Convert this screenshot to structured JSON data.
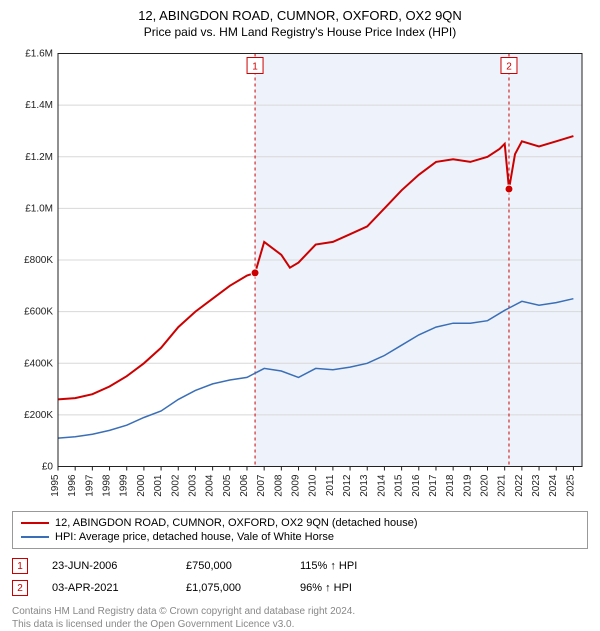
{
  "title": "12, ABINGDON ROAD, CUMNOR, OXFORD, OX2 9QN",
  "subtitle": "Price paid vs. HM Land Registry's House Price Index (HPI)",
  "chart": {
    "type": "line",
    "background_color": "#ffffff",
    "shade_color": "#eef3fb",
    "grid_color": "#d8d8d8",
    "axis_color": "#222222",
    "font_family": "Arial",
    "label_fontsize": 10,
    "xlim": [
      1995,
      2025.5
    ],
    "ylim": [
      0,
      1600000
    ],
    "ytick_step": 200000,
    "y_ticks": [
      "£0",
      "£200K",
      "£400K",
      "£600K",
      "£800K",
      "£1.0M",
      "£1.2M",
      "£1.4M",
      "£1.6M"
    ],
    "x_ticks": [
      1995,
      1996,
      1997,
      1998,
      1999,
      2000,
      2001,
      2002,
      2003,
      2004,
      2005,
      2006,
      2007,
      2008,
      2009,
      2010,
      2011,
      2012,
      2013,
      2014,
      2015,
      2016,
      2017,
      2018,
      2019,
      2020,
      2021,
      2022,
      2023,
      2024,
      2025
    ],
    "shade_from_year": 2006.47,
    "series": [
      {
        "name": "property",
        "color": "#cc0000",
        "line_width": 2,
        "points": [
          [
            1995,
            260000
          ],
          [
            1996,
            265000
          ],
          [
            1997,
            280000
          ],
          [
            1998,
            310000
          ],
          [
            1999,
            350000
          ],
          [
            2000,
            400000
          ],
          [
            2001,
            460000
          ],
          [
            2002,
            540000
          ],
          [
            2003,
            600000
          ],
          [
            2004,
            650000
          ],
          [
            2005,
            700000
          ],
          [
            2006,
            740000
          ],
          [
            2006.47,
            750000
          ],
          [
            2007,
            870000
          ],
          [
            2008,
            820000
          ],
          [
            2008.5,
            770000
          ],
          [
            2009,
            790000
          ],
          [
            2010,
            860000
          ],
          [
            2011,
            870000
          ],
          [
            2012,
            900000
          ],
          [
            2013,
            930000
          ],
          [
            2014,
            1000000
          ],
          [
            2015,
            1070000
          ],
          [
            2016,
            1130000
          ],
          [
            2017,
            1180000
          ],
          [
            2018,
            1190000
          ],
          [
            2019,
            1180000
          ],
          [
            2020,
            1200000
          ],
          [
            2020.7,
            1230000
          ],
          [
            2021,
            1250000
          ],
          [
            2021.25,
            1075000
          ],
          [
            2021.6,
            1210000
          ],
          [
            2022,
            1260000
          ],
          [
            2023,
            1240000
          ],
          [
            2024,
            1260000
          ],
          [
            2025,
            1280000
          ]
        ]
      },
      {
        "name": "hpi",
        "color": "#3a6fb7",
        "line_width": 1.5,
        "points": [
          [
            1995,
            110000
          ],
          [
            1996,
            115000
          ],
          [
            1997,
            125000
          ],
          [
            1998,
            140000
          ],
          [
            1999,
            160000
          ],
          [
            2000,
            190000
          ],
          [
            2001,
            215000
          ],
          [
            2002,
            260000
          ],
          [
            2003,
            295000
          ],
          [
            2004,
            320000
          ],
          [
            2005,
            335000
          ],
          [
            2006,
            345000
          ],
          [
            2007,
            380000
          ],
          [
            2008,
            370000
          ],
          [
            2009,
            345000
          ],
          [
            2010,
            380000
          ],
          [
            2011,
            375000
          ],
          [
            2012,
            385000
          ],
          [
            2013,
            400000
          ],
          [
            2014,
            430000
          ],
          [
            2015,
            470000
          ],
          [
            2016,
            510000
          ],
          [
            2017,
            540000
          ],
          [
            2018,
            555000
          ],
          [
            2019,
            555000
          ],
          [
            2020,
            565000
          ],
          [
            2021,
            605000
          ],
          [
            2022,
            640000
          ],
          [
            2023,
            625000
          ],
          [
            2024,
            635000
          ],
          [
            2025,
            650000
          ]
        ]
      }
    ],
    "markers": [
      {
        "id": "1",
        "year": 2006.47,
        "value": 750000,
        "box_color": "#cc0000"
      },
      {
        "id": "2",
        "year": 2021.25,
        "value": 1075000,
        "box_color": "#cc0000"
      }
    ],
    "marker_line_color": "#cc0000",
    "marker_line_dash": "3,3"
  },
  "legend": {
    "items": [
      {
        "label": "12, ABINGDON ROAD, CUMNOR, OXFORD, OX2 9QN (detached house)",
        "color": "#cc0000"
      },
      {
        "label": "HPI: Average price, detached house, Vale of White Horse",
        "color": "#3a6fb7"
      }
    ]
  },
  "sales": [
    {
      "marker": "1",
      "marker_color": "#cc0000",
      "date": "23-JUN-2006",
      "price": "£750,000",
      "pct": "115% ↑ HPI"
    },
    {
      "marker": "2",
      "marker_color": "#cc0000",
      "date": "03-APR-2021",
      "price": "£1,075,000",
      "pct": "96% ↑ HPI"
    }
  ],
  "footer_line1": "Contains HM Land Registry data © Crown copyright and database right 2024.",
  "footer_line2": "This data is licensed under the Open Government Licence v3.0."
}
